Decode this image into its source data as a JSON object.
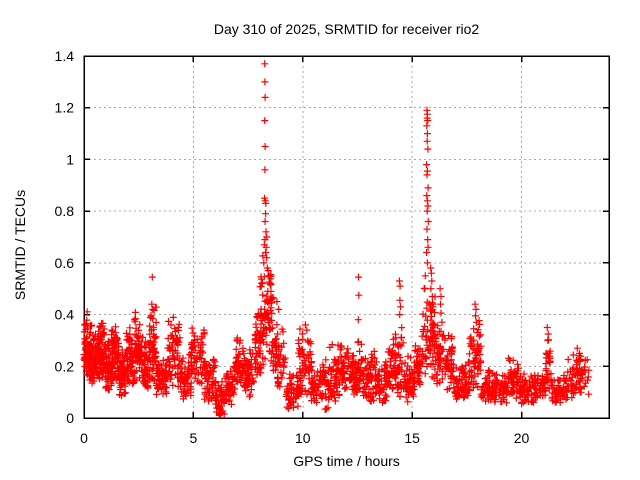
{
  "colors": {
    "background": "#ffffff",
    "axis": "#000000",
    "grid": "#a8a8a8",
    "marker": "#ff0000",
    "text": "#000000"
  },
  "chart_data": {
    "type": "scatter",
    "title": "Day 310 of 2025, SRMTID for receiver rio2",
    "xlabel": "GPS time / hours",
    "ylabel": "SRMTID / TECUs",
    "xlim": [
      0,
      24
    ],
    "ylim": [
      0,
      1.4
    ],
    "xticks": [
      0,
      5,
      10,
      15,
      20
    ],
    "yticks": [
      0,
      0.2,
      0.4,
      0.6,
      0.8,
      1.0,
      1.2,
      1.4
    ],
    "xtick_labels": [
      "0",
      "5",
      "10",
      "15",
      "20"
    ],
    "ytick_labels": [
      "0",
      "0.2",
      "0.4",
      "0.6",
      "0.8",
      "1",
      "1.2",
      "1.4"
    ],
    "grid": true,
    "legend": "none",
    "marker": "plus",
    "series_name": "SRMTID",
    "description": "Dense red plus-marker scatter: baseline 0.05-0.4 TECU with large spikes near 8.3h (to 1.37) and 15.7h (to 1.19), smaller spikes at 3.1h, 12.55h, 14.45h, 17.9h, 21.2h; quiet dips near 6.2h and 9.5h; data ends ~23.1h",
    "noise_bands": [
      [
        0.0,
        0.35,
        0.14,
        0.42,
        75
      ],
      [
        0.35,
        0.65,
        0.12,
        0.36,
        60
      ],
      [
        0.65,
        0.95,
        0.15,
        0.42,
        65
      ],
      [
        0.95,
        1.25,
        0.1,
        0.32,
        55
      ],
      [
        1.25,
        1.6,
        0.13,
        0.4,
        65
      ],
      [
        1.6,
        1.9,
        0.08,
        0.28,
        50
      ],
      [
        1.9,
        2.3,
        0.12,
        0.37,
        65
      ],
      [
        2.3,
        2.7,
        0.14,
        0.43,
        60
      ],
      [
        2.7,
        3.0,
        0.1,
        0.32,
        45
      ],
      [
        3.0,
        3.3,
        0.13,
        0.45,
        50
      ],
      [
        3.3,
        3.8,
        0.08,
        0.26,
        55
      ],
      [
        3.8,
        4.4,
        0.1,
        0.42,
        65
      ],
      [
        4.4,
        4.9,
        0.07,
        0.26,
        55
      ],
      [
        4.9,
        5.5,
        0.12,
        0.37,
        60
      ],
      [
        5.5,
        6.0,
        0.05,
        0.25,
        50
      ],
      [
        6.0,
        6.45,
        0.005,
        0.15,
        45
      ],
      [
        6.45,
        6.85,
        0.05,
        0.22,
        40
      ],
      [
        6.85,
        7.35,
        0.1,
        0.33,
        55
      ],
      [
        7.35,
        7.8,
        0.08,
        0.28,
        50
      ],
      [
        7.8,
        8.1,
        0.15,
        0.45,
        45
      ],
      [
        8.05,
        8.65,
        0.2,
        0.65,
        85
      ],
      [
        8.65,
        9.2,
        0.12,
        0.38,
        55
      ],
      [
        9.2,
        9.8,
        0.03,
        0.18,
        50
      ],
      [
        9.8,
        10.4,
        0.08,
        0.35,
        60
      ],
      [
        10.4,
        10.9,
        0.05,
        0.2,
        45
      ],
      [
        10.9,
        11.5,
        0.02,
        0.3,
        60
      ],
      [
        11.5,
        12.1,
        0.08,
        0.3,
        60
      ],
      [
        12.1,
        12.5,
        0.08,
        0.28,
        45
      ],
      [
        12.5,
        12.7,
        0.1,
        0.3,
        25
      ],
      [
        12.7,
        13.3,
        0.06,
        0.28,
        55
      ],
      [
        13.3,
        13.9,
        0.05,
        0.25,
        55
      ],
      [
        13.9,
        14.3,
        0.08,
        0.33,
        45
      ],
      [
        14.3,
        14.6,
        0.03,
        0.38,
        30
      ],
      [
        14.6,
        15.1,
        0.05,
        0.25,
        50
      ],
      [
        15.1,
        15.45,
        0.1,
        0.3,
        40
      ],
      [
        15.45,
        16.05,
        0.15,
        0.52,
        75
      ],
      [
        16.05,
        16.5,
        0.12,
        0.45,
        45
      ],
      [
        16.5,
        16.9,
        0.1,
        0.33,
        45
      ],
      [
        16.9,
        17.6,
        0.07,
        0.22,
        60
      ],
      [
        17.6,
        18.15,
        0.1,
        0.4,
        60
      ],
      [
        18.15,
        18.7,
        0.06,
        0.2,
        50
      ],
      [
        18.7,
        19.4,
        0.05,
        0.18,
        55
      ],
      [
        19.4,
        19.9,
        0.07,
        0.24,
        45
      ],
      [
        19.9,
        20.6,
        0.05,
        0.18,
        55
      ],
      [
        20.6,
        21.1,
        0.06,
        0.2,
        45
      ],
      [
        21.1,
        21.35,
        0.1,
        0.32,
        25
      ],
      [
        21.35,
        22.1,
        0.05,
        0.18,
        60
      ],
      [
        22.1,
        23.1,
        0.07,
        0.28,
        70
      ]
    ],
    "outlier_points": [
      [
        8.26,
        1.37
      ],
      [
        8.27,
        1.3
      ],
      [
        8.28,
        1.24
      ],
      [
        8.26,
        1.15
      ],
      [
        8.28,
        1.05
      ],
      [
        8.27,
        0.96
      ],
      [
        8.25,
        0.85
      ],
      [
        8.29,
        0.84
      ],
      [
        8.31,
        0.83
      ],
      [
        8.3,
        0.79
      ],
      [
        8.28,
        0.76
      ],
      [
        8.27,
        0.69
      ],
      [
        8.33,
        0.66
      ],
      [
        8.3,
        0.64
      ],
      [
        8.35,
        0.62
      ],
      [
        8.22,
        0.6
      ],
      [
        8.38,
        0.58
      ],
      [
        8.42,
        0.57
      ],
      [
        8.45,
        0.55
      ],
      [
        8.5,
        0.52
      ],
      [
        8.55,
        0.49
      ],
      [
        8.6,
        0.46
      ],
      [
        8.15,
        0.52
      ],
      [
        8.35,
        0.7
      ],
      [
        8.32,
        0.72
      ],
      [
        8.24,
        0.67
      ],
      [
        15.68,
        1.19
      ],
      [
        15.7,
        1.175
      ],
      [
        15.69,
        1.16
      ],
      [
        15.71,
        1.15
      ],
      [
        15.67,
        1.13
      ],
      [
        15.7,
        1.1
      ],
      [
        15.69,
        1.07
      ],
      [
        15.72,
        1.04
      ],
      [
        15.66,
        0.98
      ],
      [
        15.7,
        0.955
      ],
      [
        15.68,
        0.94
      ],
      [
        15.73,
        0.89
      ],
      [
        15.67,
        0.86
      ],
      [
        15.7,
        0.84
      ],
      [
        15.72,
        0.82
      ],
      [
        15.69,
        0.8
      ],
      [
        15.74,
        0.76
      ],
      [
        15.68,
        0.73
      ],
      [
        15.71,
        0.69
      ],
      [
        15.73,
        0.66
      ],
      [
        15.66,
        0.64
      ],
      [
        15.7,
        0.6
      ],
      [
        15.85,
        0.58
      ],
      [
        15.88,
        0.56
      ],
      [
        15.9,
        0.53
      ],
      [
        15.86,
        0.5
      ],
      [
        15.92,
        0.47
      ],
      [
        15.6,
        0.55
      ],
      [
        15.58,
        0.5
      ],
      [
        15.95,
        0.44
      ],
      [
        3.12,
        0.545
      ],
      [
        3.1,
        0.44
      ],
      [
        3.14,
        0.42
      ],
      [
        12.55,
        0.545
      ],
      [
        12.56,
        0.475
      ],
      [
        12.54,
        0.38
      ],
      [
        12.55,
        0.295
      ],
      [
        14.42,
        0.53
      ],
      [
        14.45,
        0.51
      ],
      [
        14.44,
        0.455
      ],
      [
        14.47,
        0.43
      ],
      [
        14.43,
        0.4
      ],
      [
        16.28,
        0.5
      ],
      [
        16.32,
        0.47
      ],
      [
        16.3,
        0.44
      ],
      [
        17.88,
        0.44
      ],
      [
        17.92,
        0.42
      ],
      [
        17.9,
        0.395
      ],
      [
        17.94,
        0.37
      ],
      [
        21.18,
        0.35
      ],
      [
        21.22,
        0.325
      ],
      [
        21.2,
        0.3
      ],
      [
        8.82,
        0.45
      ],
      [
        8.9,
        0.42
      ],
      [
        10.12,
        0.36
      ],
      [
        10.18,
        0.34
      ],
      [
        6.18,
        0.01
      ],
      [
        6.22,
        0.015
      ],
      [
        6.25,
        0.02
      ],
      [
        22.55,
        0.27
      ],
      [
        22.65,
        0.25
      ]
    ]
  }
}
